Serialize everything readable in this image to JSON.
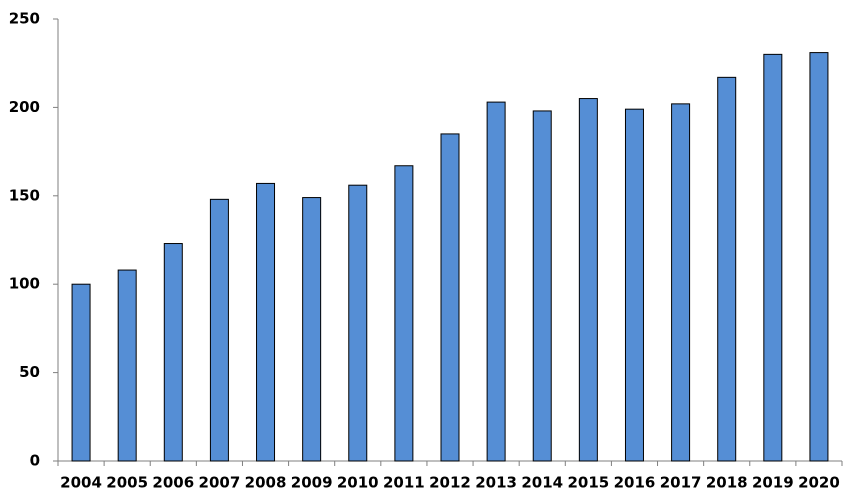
{
  "chart_data": {
    "type": "bar",
    "categories": [
      "2004",
      "2005",
      "2006",
      "2007",
      "2008",
      "2009",
      "2010",
      "2011",
      "2012",
      "2013",
      "2014",
      "2015",
      "2016",
      "2017",
      "2018",
      "2019",
      "2020"
    ],
    "values": [
      100,
      108,
      123,
      148,
      157,
      149,
      156,
      167,
      185,
      203,
      198,
      205,
      199,
      202,
      217,
      230,
      231
    ],
    "color": "#558ed5",
    "ylim": [
      0,
      250
    ],
    "yticks": [
      0,
      50,
      100,
      150,
      200,
      250
    ],
    "grid": false
  }
}
